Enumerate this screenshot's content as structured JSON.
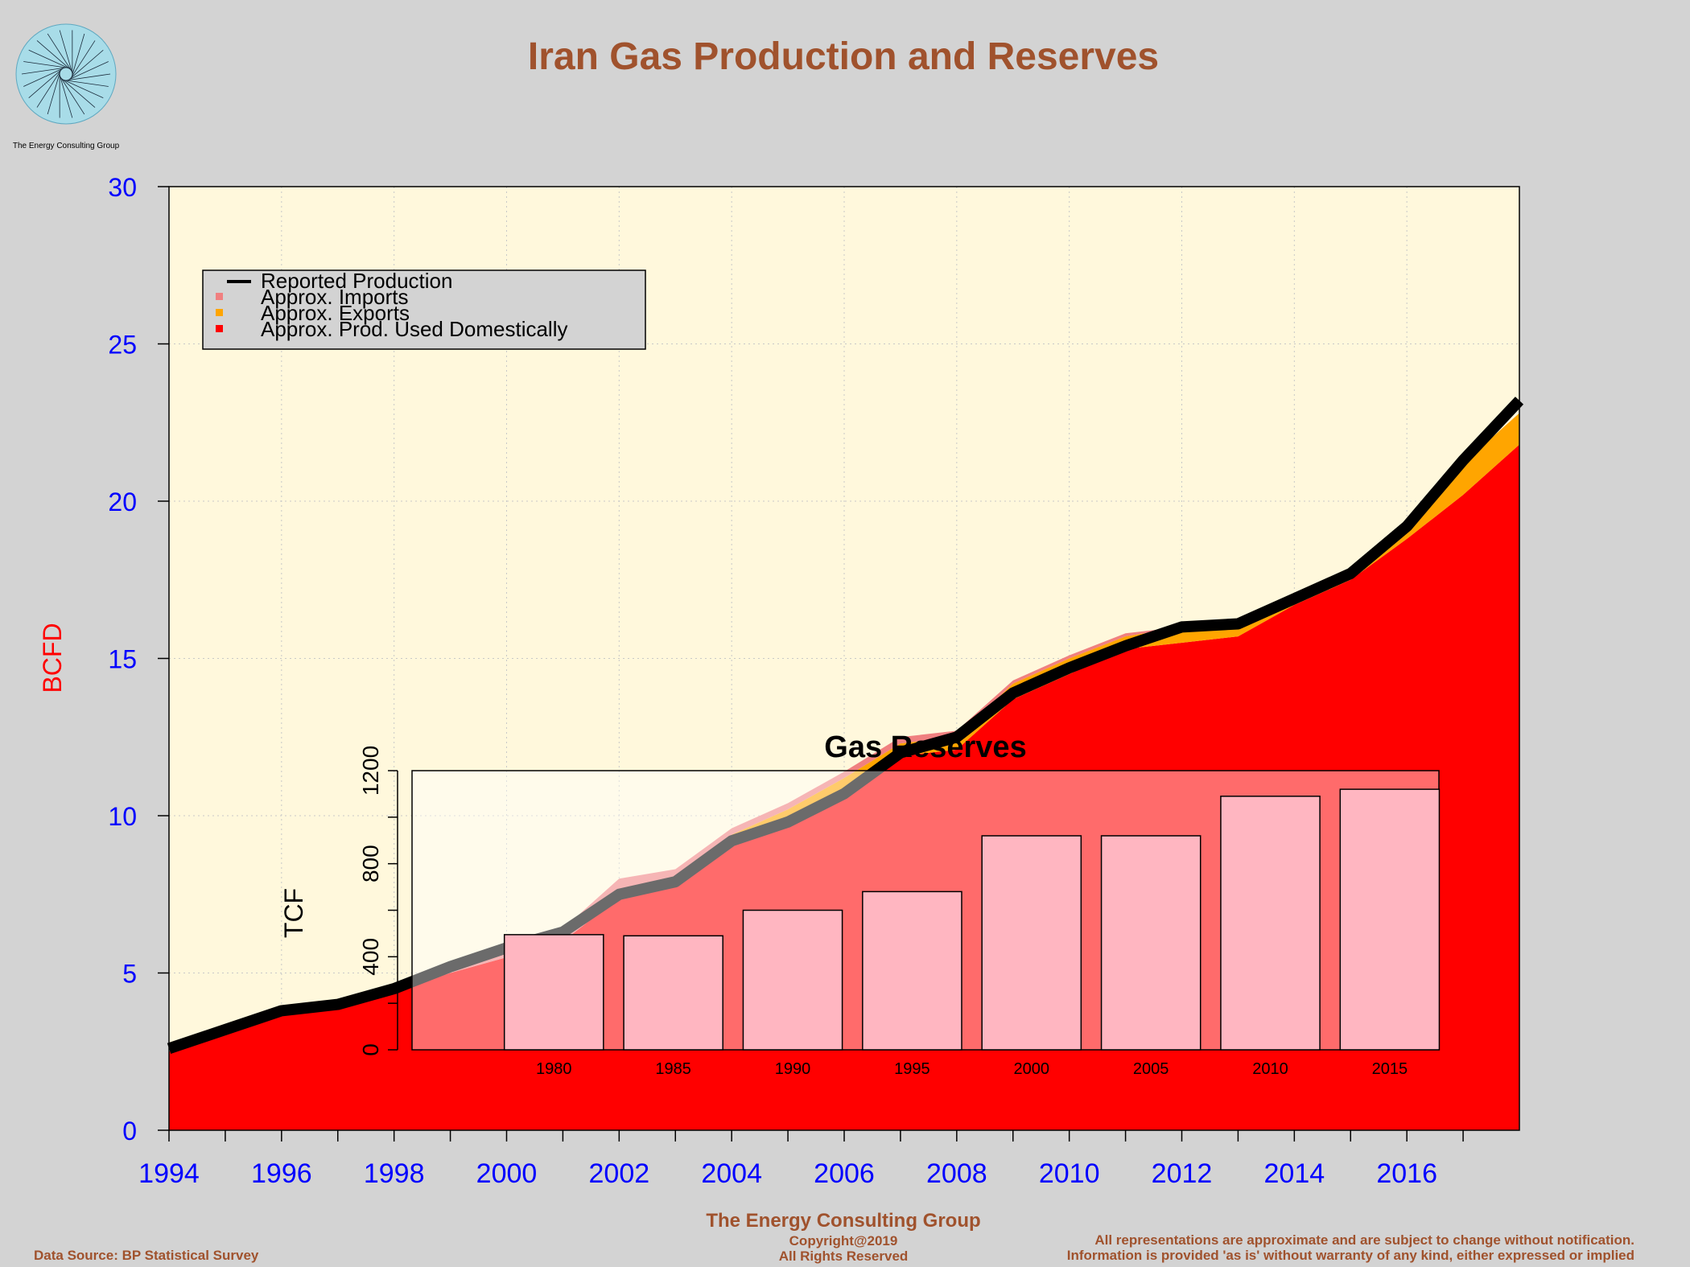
{
  "title": "Iran Gas Production and Reserves",
  "logo": {
    "caption": "The Energy Consulting Group"
  },
  "footer": {
    "source": "Data Source: BP Statistical Survey",
    "center_title": "The Energy Consulting Group",
    "copyright": "Copyright@2019",
    "rights": "All Rights Reserved",
    "disclaimer_1": "All representations are approximate and are subject to change without notification.",
    "disclaimer_2": "Information is provided 'as is' without warranty of any kind, either expressed or implied"
  },
  "colors": {
    "background": "#d3d3d3",
    "plot_bg": "#fff8dc",
    "domestic": "#ff0000",
    "exports": "#ffa500",
    "imports": "#f08080",
    "production": "#000000",
    "title": "#a0522d",
    "axis_text": "#0000ff",
    "ylabel": "#ff0000",
    "inset_bar": "#ffb6c1"
  },
  "chart_data": [
    {
      "type": "area",
      "title": "Iran Gas Production and Reserves",
      "xlabel": "",
      "ylabel": "BCFD",
      "xlim": [
        1994,
        2018
      ],
      "ylim": [
        0,
        30
      ],
      "x_ticks": [
        1994,
        1996,
        1998,
        2000,
        2002,
        2004,
        2006,
        2008,
        2010,
        2012,
        2014,
        2016
      ],
      "y_ticks": [
        0,
        5,
        10,
        15,
        20,
        25,
        30
      ],
      "grid": true,
      "legend_position": "top-left",
      "legend": [
        "Reported Production",
        "Approx. Imports",
        "Approx. Exports",
        "Approx. Prod. Used Domestically"
      ],
      "x": [
        1994,
        1995,
        1996,
        1997,
        1998,
        1999,
        2000,
        2001,
        2002,
        2003,
        2004,
        2005,
        2006,
        2007,
        2008,
        2009,
        2010,
        2011,
        2012,
        2013,
        2014,
        2015,
        2016,
        2017,
        2018
      ],
      "series": [
        {
          "name": "Approx. Prod. Used Domestically",
          "values": [
            2.5,
            3.1,
            3.7,
            3.9,
            4.4,
            5.0,
            5.5,
            6.0,
            7.4,
            7.8,
            9.1,
            9.7,
            10.6,
            11.9,
            12.1,
            13.7,
            14.5,
            15.3,
            15.5,
            15.7,
            16.7,
            17.5,
            18.8,
            20.2,
            21.8
          ]
        },
        {
          "name": "Approx. Exports",
          "values": [
            0,
            0,
            0,
            0,
            0,
            0,
            0,
            0,
            0,
            0.1,
            0.3,
            0.5,
            0.6,
            0.4,
            0.4,
            0.5,
            0.5,
            0.4,
            0.5,
            0.5,
            0.3,
            0.3,
            0.4,
            1.0,
            1.0
          ]
        },
        {
          "name": "Approx. Imports",
          "values": [
            0,
            0,
            0,
            0,
            0,
            0,
            0.2,
            0.4,
            0.6,
            0.4,
            0.2,
            0.2,
            0.2,
            0.2,
            0.2,
            0.1,
            0.1,
            0.1,
            0,
            0,
            0,
            0,
            0,
            0,
            0
          ]
        },
        {
          "name": "Reported Production",
          "values": [
            2.6,
            3.2,
            3.8,
            4.0,
            4.5,
            5.2,
            5.8,
            6.3,
            7.5,
            7.9,
            9.2,
            9.8,
            10.7,
            12.0,
            12.5,
            13.9,
            14.7,
            15.4,
            16.0,
            16.1,
            16.9,
            17.7,
            19.2,
            21.3,
            23.2
          ]
        }
      ]
    },
    {
      "type": "bar",
      "title": "Gas Reserves",
      "xlabel": "",
      "ylabel": "TCF",
      "ylim": [
        0,
        1200
      ],
      "y_ticks": [
        0,
        400,
        800,
        1200
      ],
      "categories": [
        "1980",
        "1985",
        "1990",
        "1995",
        "2000",
        "2005",
        "2010",
        "2015"
      ],
      "values": [
        495,
        490,
        600,
        680,
        920,
        920,
        1090,
        1120
      ]
    }
  ]
}
